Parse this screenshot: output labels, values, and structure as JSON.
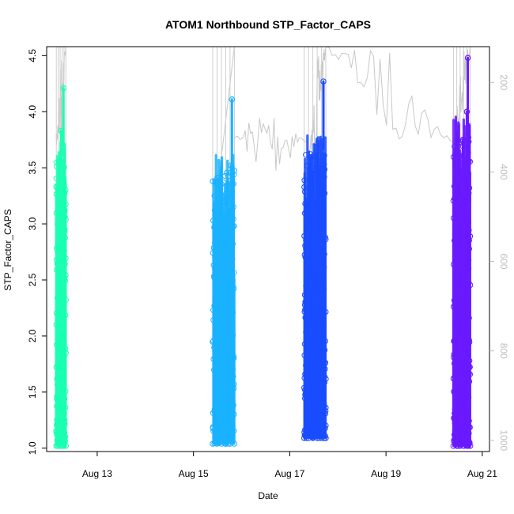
{
  "chart_data": {
    "type": "scatter",
    "title": "ATOM1 Northbound STP_Factor_CAPS",
    "xlabel": "Date",
    "ylabel": "STP_Factor_CAPS",
    "x_ticks": [
      "Aug 13",
      "Aug 15",
      "Aug 17",
      "Aug 19",
      "Aug 21"
    ],
    "x_tick_days": [
      13,
      15,
      17,
      19,
      21
    ],
    "xlim_days": [
      11.95,
      21.15
    ],
    "y_ticks": [
      1.0,
      1.5,
      2.0,
      2.5,
      3.0,
      3.5,
      4.0,
      4.5
    ],
    "y_tick_labels": [
      "1.0",
      "1.5",
      "2.0",
      "2.5",
      "3.0",
      "3.5",
      "4.0",
      "4.5"
    ],
    "ylim": [
      0.97,
      4.58
    ],
    "y2_ticks": [
      200,
      400,
      600,
      800,
      1000
    ],
    "y2_tick_labels": [
      "200",
      "400",
      "600",
      "800",
      "1000"
    ],
    "y2lim_reversed": [
      1025,
      120
    ],
    "grid": false,
    "series": [
      {
        "color": "#1affb2",
        "x_start": 12.15,
        "x_end": 12.35,
        "n": 70,
        "y_min": 1.02,
        "y_max": 4.21,
        "peaks": [
          {
            "x": 12.3,
            "y": 4.21
          },
          {
            "x": 12.25,
            "y": 3.83
          },
          {
            "x": 12.2,
            "y": 3.55
          },
          {
            "x": 12.15,
            "y": 3.33
          }
        ]
      },
      {
        "color": "#1ab2ff",
        "x_start": 15.4,
        "x_end": 15.85,
        "n": 95,
        "y_min": 1.04,
        "y_max": 4.11,
        "peaks": [
          {
            "x": 15.8,
            "y": 4.11
          },
          {
            "x": 15.78,
            "y": 3.52
          },
          {
            "x": 15.55,
            "y": 3.0
          },
          {
            "x": 15.45,
            "y": 2.7
          }
        ]
      },
      {
        "color": "#1a4dff",
        "x_start": 17.3,
        "x_end": 17.75,
        "n": 110,
        "y_min": 1.09,
        "y_max": 4.27,
        "peaks": [
          {
            "x": 17.7,
            "y": 4.27
          },
          {
            "x": 17.6,
            "y": 3.72
          },
          {
            "x": 17.5,
            "y": 3.47
          },
          {
            "x": 17.35,
            "y": 3.1
          }
        ]
      },
      {
        "color": "#6a1aff",
        "x_start": 20.4,
        "x_end": 20.75,
        "n": 90,
        "y_min": 1.02,
        "y_max": 4.48,
        "peaks": [
          {
            "x": 20.7,
            "y": 4.48
          },
          {
            "x": 20.68,
            "y": 4.0
          },
          {
            "x": 20.6,
            "y": 3.75
          },
          {
            "x": 20.45,
            "y": 2.96
          }
        ]
      }
    ],
    "secondary_line": {
      "color": "#c8c8c8",
      "axis": "right",
      "segments": [
        {
          "x": [
            12.15,
            12.35
          ],
          "y2": [
            340,
            120
          ]
        },
        {
          "x": [
            15.5,
            15.85
          ],
          "y2": [
            440,
            120
          ]
        },
        {
          "x": [
            15.85,
            17.35
          ],
          "y2": [
            325,
            330
          ]
        },
        {
          "x": [
            17.4,
            17.75
          ],
          "y2": [
            370,
            120
          ]
        },
        {
          "x": [
            17.75,
            20.4
          ],
          "y2": [
            120,
            333
          ]
        },
        {
          "x": [
            20.4,
            20.75
          ],
          "y2": [
            333,
            120
          ]
        }
      ]
    }
  }
}
